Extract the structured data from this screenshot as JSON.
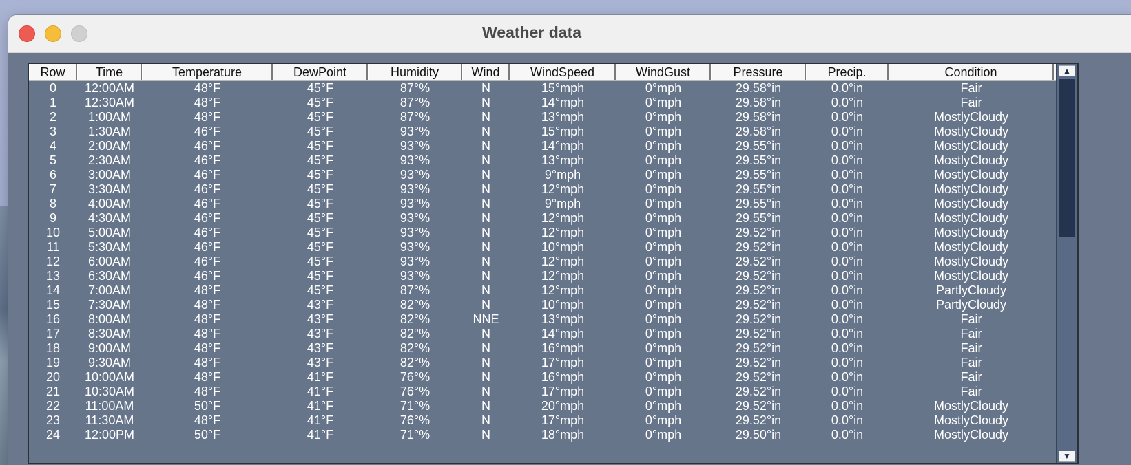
{
  "window": {
    "title": "Weather data"
  },
  "colors": {
    "table_bg": "#67758b",
    "header_bg": "#f7f7f7",
    "cell_text": "#ffffff",
    "close": "#ee5b53",
    "minimize": "#f6bd3b",
    "zoom": "#d0d0d0"
  },
  "icons": {
    "close": "close-traffic-light",
    "minimize": "minimize-traffic-light",
    "zoom": "zoom-traffic-light",
    "scroll_up": "▲",
    "scroll_down": "▼"
  },
  "table": {
    "columns": [
      "Row",
      "Time",
      "Temperature",
      "DewPoint",
      "Humidity",
      "Wind",
      "WindSpeed",
      "WindGust",
      "Pressure",
      "Precip.",
      "Condition"
    ],
    "rows": [
      [
        "0",
        "12:00AM",
        "48°F",
        "45°F",
        "87°%",
        "N",
        "15°mph",
        "0°mph",
        "29.58°in",
        "0.0°in",
        "Fair"
      ],
      [
        "1",
        "12:30AM",
        "48°F",
        "45°F",
        "87°%",
        "N",
        "14°mph",
        "0°mph",
        "29.58°in",
        "0.0°in",
        "Fair"
      ],
      [
        "2",
        "1:00AM",
        "48°F",
        "45°F",
        "87°%",
        "N",
        "13°mph",
        "0°mph",
        "29.58°in",
        "0.0°in",
        "MostlyCloudy"
      ],
      [
        "3",
        "1:30AM",
        "46°F",
        "45°F",
        "93°%",
        "N",
        "15°mph",
        "0°mph",
        "29.58°in",
        "0.0°in",
        "MostlyCloudy"
      ],
      [
        "4",
        "2:00AM",
        "46°F",
        "45°F",
        "93°%",
        "N",
        "14°mph",
        "0°mph",
        "29.55°in",
        "0.0°in",
        "MostlyCloudy"
      ],
      [
        "5",
        "2:30AM",
        "46°F",
        "45°F",
        "93°%",
        "N",
        "13°mph",
        "0°mph",
        "29.55°in",
        "0.0°in",
        "MostlyCloudy"
      ],
      [
        "6",
        "3:00AM",
        "46°F",
        "45°F",
        "93°%",
        "N",
        "9°mph",
        "0°mph",
        "29.55°in",
        "0.0°in",
        "MostlyCloudy"
      ],
      [
        "7",
        "3:30AM",
        "46°F",
        "45°F",
        "93°%",
        "N",
        "12°mph",
        "0°mph",
        "29.55°in",
        "0.0°in",
        "MostlyCloudy"
      ],
      [
        "8",
        "4:00AM",
        "46°F",
        "45°F",
        "93°%",
        "N",
        "9°mph",
        "0°mph",
        "29.55°in",
        "0.0°in",
        "MostlyCloudy"
      ],
      [
        "9",
        "4:30AM",
        "46°F",
        "45°F",
        "93°%",
        "N",
        "12°mph",
        "0°mph",
        "29.55°in",
        "0.0°in",
        "MostlyCloudy"
      ],
      [
        "10",
        "5:00AM",
        "46°F",
        "45°F",
        "93°%",
        "N",
        "12°mph",
        "0°mph",
        "29.52°in",
        "0.0°in",
        "MostlyCloudy"
      ],
      [
        "11",
        "5:30AM",
        "46°F",
        "45°F",
        "93°%",
        "N",
        "10°mph",
        "0°mph",
        "29.52°in",
        "0.0°in",
        "MostlyCloudy"
      ],
      [
        "12",
        "6:00AM",
        "46°F",
        "45°F",
        "93°%",
        "N",
        "12°mph",
        "0°mph",
        "29.52°in",
        "0.0°in",
        "MostlyCloudy"
      ],
      [
        "13",
        "6:30AM",
        "46°F",
        "45°F",
        "93°%",
        "N",
        "12°mph",
        "0°mph",
        "29.52°in",
        "0.0°in",
        "MostlyCloudy"
      ],
      [
        "14",
        "7:00AM",
        "48°F",
        "45°F",
        "87°%",
        "N",
        "12°mph",
        "0°mph",
        "29.52°in",
        "0.0°in",
        "PartlyCloudy"
      ],
      [
        "15",
        "7:30AM",
        "48°F",
        "43°F",
        "82°%",
        "N",
        "10°mph",
        "0°mph",
        "29.52°in",
        "0.0°in",
        "PartlyCloudy"
      ],
      [
        "16",
        "8:00AM",
        "48°F",
        "43°F",
        "82°%",
        "NNE",
        "13°mph",
        "0°mph",
        "29.52°in",
        "0.0°in",
        "Fair"
      ],
      [
        "17",
        "8:30AM",
        "48°F",
        "43°F",
        "82°%",
        "N",
        "14°mph",
        "0°mph",
        "29.52°in",
        "0.0°in",
        "Fair"
      ],
      [
        "18",
        "9:00AM",
        "48°F",
        "43°F",
        "82°%",
        "N",
        "16°mph",
        "0°mph",
        "29.52°in",
        "0.0°in",
        "Fair"
      ],
      [
        "19",
        "9:30AM",
        "48°F",
        "43°F",
        "82°%",
        "N",
        "17°mph",
        "0°mph",
        "29.52°in",
        "0.0°in",
        "Fair"
      ],
      [
        "20",
        "10:00AM",
        "48°F",
        "41°F",
        "76°%",
        "N",
        "16°mph",
        "0°mph",
        "29.52°in",
        "0.0°in",
        "Fair"
      ],
      [
        "21",
        "10:30AM",
        "48°F",
        "41°F",
        "76°%",
        "N",
        "17°mph",
        "0°mph",
        "29.52°in",
        "0.0°in",
        "Fair"
      ],
      [
        "22",
        "11:00AM",
        "50°F",
        "41°F",
        "71°%",
        "N",
        "20°mph",
        "0°mph",
        "29.52°in",
        "0.0°in",
        "MostlyCloudy"
      ],
      [
        "23",
        "11:30AM",
        "48°F",
        "41°F",
        "76°%",
        "N",
        "17°mph",
        "0°mph",
        "29.52°in",
        "0.0°in",
        "MostlyCloudy"
      ],
      [
        "24",
        "12:00PM",
        "50°F",
        "41°F",
        "71°%",
        "N",
        "18°mph",
        "0°mph",
        "29.50°in",
        "0.0°in",
        "MostlyCloudy"
      ]
    ]
  }
}
